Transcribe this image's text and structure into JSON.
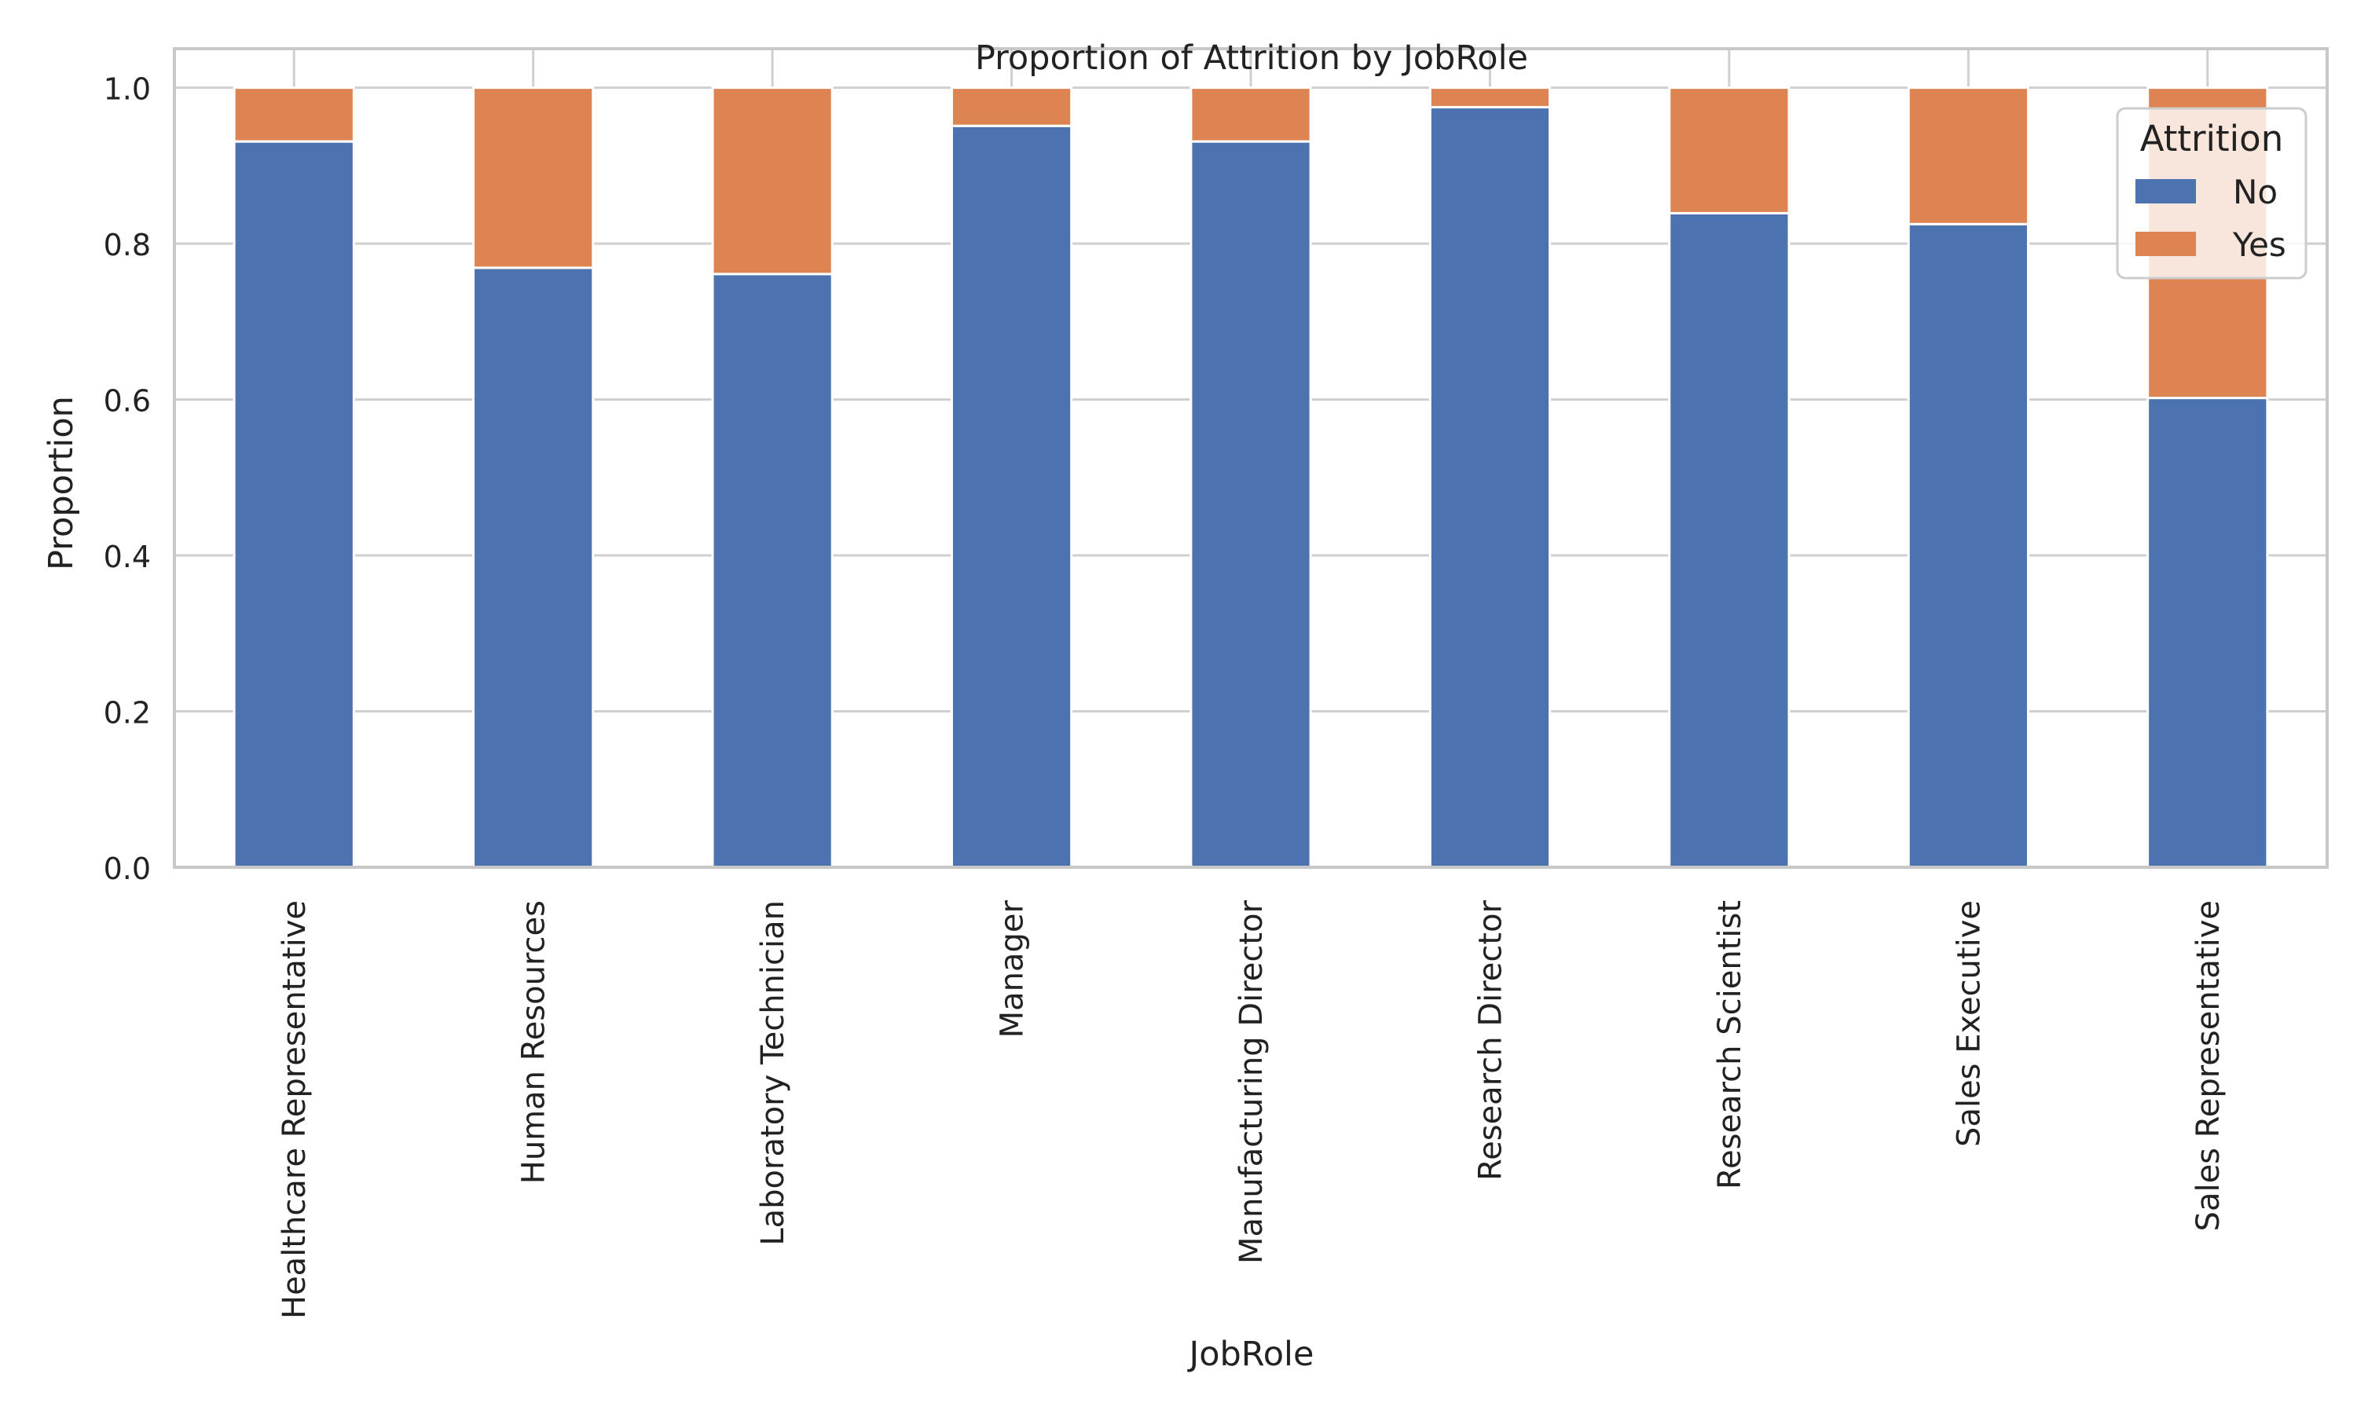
{
  "chart_data": {
    "type": "bar",
    "stacked": true,
    "title": "Proportion of Attrition by JobRole",
    "xlabel": "JobRole",
    "ylabel": "Proportion",
    "ylim": [
      0,
      1.05
    ],
    "yticks": [
      "0.0",
      "0.2",
      "0.4",
      "0.6",
      "0.8",
      "1.0"
    ],
    "grid": true,
    "legend": {
      "title": "Attrition",
      "placement": "top-right"
    },
    "categories": [
      "Healthcare Representative",
      "Human Resources",
      "Laboratory Technician",
      "Manager",
      "Manufacturing Director",
      "Research Director",
      "Research Scientist",
      "Sales Executive",
      "Sales Representative"
    ],
    "series": [
      {
        "name": "No",
        "color": "#4c72b0",
        "values": [
          0.931,
          0.769,
          0.761,
          0.951,
          0.931,
          0.975,
          0.839,
          0.825,
          0.602
        ]
      },
      {
        "name": "Yes",
        "color": "#dd8452",
        "values": [
          0.069,
          0.231,
          0.239,
          0.049,
          0.069,
          0.025,
          0.161,
          0.175,
          0.398
        ]
      }
    ]
  }
}
